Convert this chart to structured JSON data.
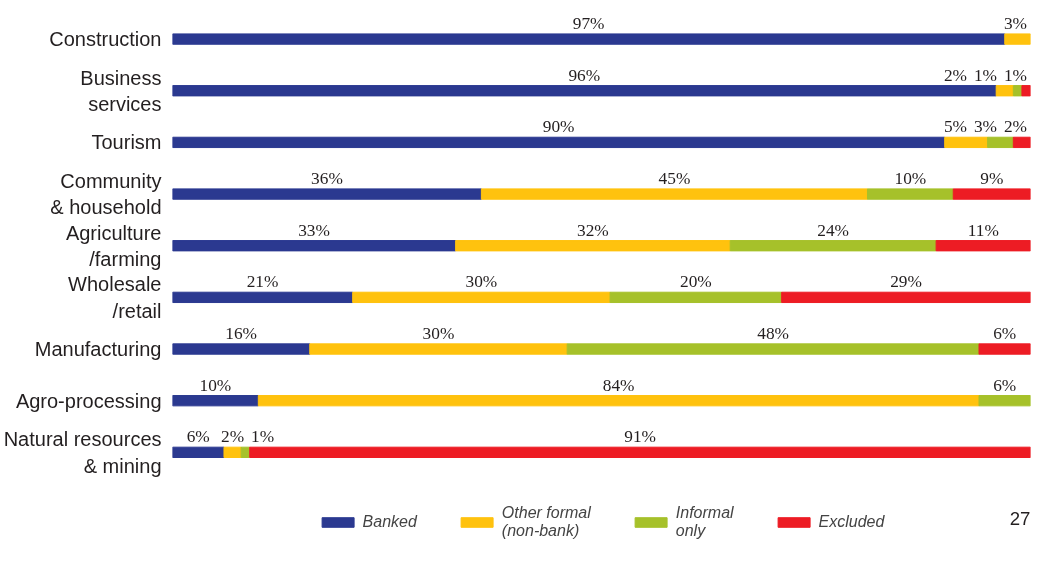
{
  "chart_data": {
    "type": "bar",
    "orientation": "horizontal",
    "stacked": true,
    "categories": [
      "Construction",
      "Business\nservices",
      "Tourism",
      "Community\n& household",
      "Agriculture\n/farming",
      "Wholesale\n/retail",
      "Manufacturing",
      "Agro-processing",
      "Natural resources\n& mining"
    ],
    "series": [
      {
        "name": "Banked",
        "color": "#2b3990",
        "values": [
          97,
          96,
          90,
          36,
          33,
          21,
          16,
          10,
          6
        ],
        "value_labels": [
          "97%",
          "96%",
          "90%",
          "36%",
          "33%",
          "21%",
          "16%",
          "10%",
          "6%"
        ]
      },
      {
        "name": "Other formal\n(non-bank)",
        "color": "#ffc20e",
        "values": [
          3,
          2,
          5,
          45,
          32,
          30,
          30,
          84,
          2
        ],
        "value_labels": [
          "3%",
          "2%",
          "5%",
          "45%",
          "32%",
          "30%",
          "30%",
          "84%",
          "2%"
        ]
      },
      {
        "name": "Informal\nonly",
        "color": "#a6c12a",
        "values": [
          null,
          1,
          3,
          10,
          24,
          20,
          48,
          6,
          1
        ],
        "value_labels": [
          null,
          "1%",
          "3%",
          "10%",
          "24%",
          "20%",
          "48%",
          "6%",
          "1%"
        ]
      },
      {
        "name": "Excluded",
        "color": "#ed1c24",
        "values": [
          null,
          1,
          2,
          9,
          11,
          29,
          6,
          null,
          91
        ],
        "value_labels": [
          null,
          "1%",
          "2%",
          "9%",
          "11%",
          "29%",
          "6%",
          null,
          "91%"
        ]
      }
    ],
    "tick_labels": "y",
    "grid": false,
    "legend": "bottom",
    "annotations": [
      "27"
    ]
  }
}
